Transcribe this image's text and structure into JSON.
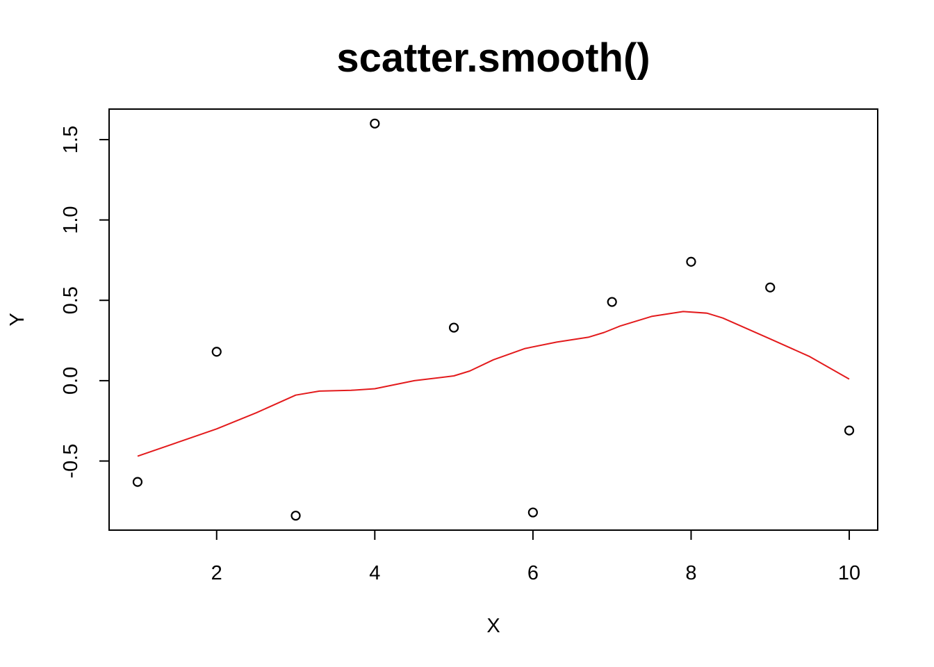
{
  "chart_data": {
    "type": "scatter",
    "title": "scatter.smooth()",
    "xlabel": "X",
    "ylabel": "Y",
    "xlim": [
      0.64,
      10.36
    ],
    "ylim": [
      -0.93,
      1.69
    ],
    "x_ticks": [
      2,
      4,
      6,
      8,
      10
    ],
    "x_tick_labels": [
      "2",
      "4",
      "6",
      "8",
      "10"
    ],
    "y_ticks": [
      -0.5,
      0.0,
      0.5,
      1.0,
      1.5
    ],
    "y_tick_labels": [
      "-0.5",
      "0.0",
      "0.5",
      "1.0",
      "1.5"
    ],
    "grid": false,
    "legend": "none",
    "series": [
      {
        "kind": "points",
        "marker": "open-circle",
        "color": "#000000",
        "x": [
          1,
          2,
          3,
          4,
          5,
          6,
          7,
          8,
          9,
          10
        ],
        "y": [
          -0.63,
          0.18,
          -0.84,
          1.6,
          0.33,
          -0.82,
          0.49,
          0.74,
          0.58,
          -0.31
        ]
      },
      {
        "kind": "smooth-line",
        "color": "#e31a1c",
        "x": [
          1,
          2,
          2.5,
          3,
          3.3,
          3.7,
          4,
          4.5,
          5,
          5.2,
          5.5,
          5.9,
          6.3,
          6.7,
          6.9,
          7.1,
          7.5,
          7.9,
          8.2,
          8.4,
          9,
          9.5,
          10
        ],
        "y": [
          -0.47,
          -0.3,
          -0.2,
          -0.09,
          -0.065,
          -0.06,
          -0.05,
          0.0,
          0.03,
          0.06,
          0.13,
          0.2,
          0.24,
          0.27,
          0.3,
          0.34,
          0.4,
          0.43,
          0.42,
          0.39,
          0.26,
          0.15,
          0.01
        ]
      }
    ]
  }
}
